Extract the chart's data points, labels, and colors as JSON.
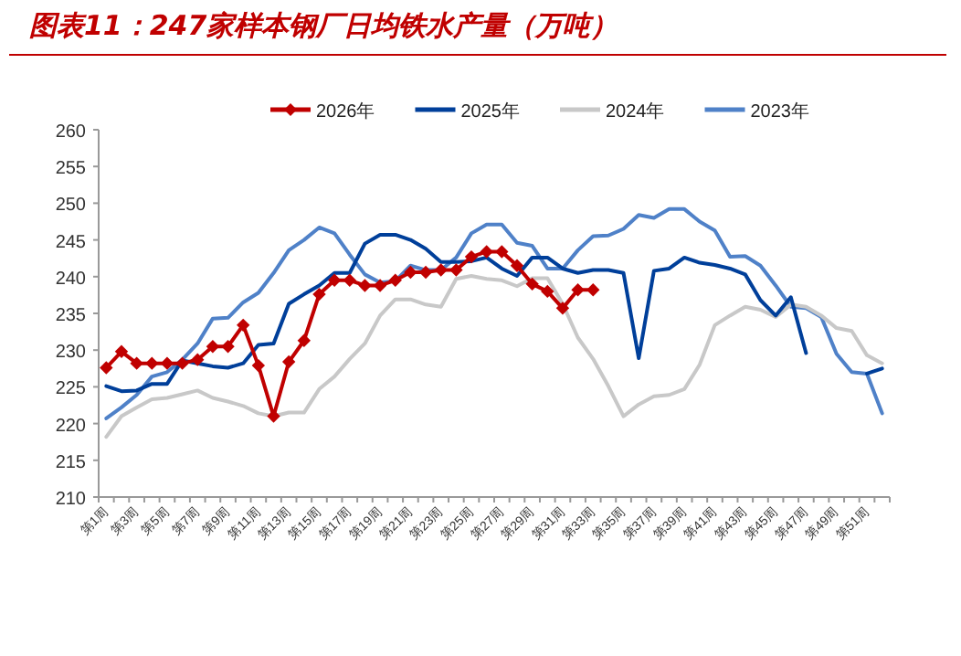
{
  "chart_data": {
    "type": "line",
    "title": "图表11：247家样本钢厂日均铁水产量（万吨）",
    "categories": [
      "第1周",
      null,
      "第3周",
      null,
      "第5周",
      null,
      "第7周",
      null,
      "第9周",
      null,
      "第11周",
      null,
      "第13周",
      null,
      "第15周",
      null,
      "第17周",
      null,
      "第19周",
      null,
      "第21周",
      null,
      "第23周",
      null,
      "第25周",
      null,
      "第27周",
      null,
      "第29周",
      null,
      "第31周",
      null,
      "第33周",
      null,
      "第35周",
      null,
      "第37周",
      null,
      "第39周",
      null,
      "第41周",
      null,
      "第43周",
      null,
      "第45周",
      null,
      "第47周",
      null,
      "第49周",
      null,
      "第51周",
      null
    ],
    "series": [
      {
        "name": "2026年",
        "color": "#c00000",
        "marker": "diamond",
        "values": [
          227.6,
          229.8,
          228.2,
          228.2,
          228.2,
          228.2,
          228.7,
          230.5,
          230.5,
          233.4,
          227.9,
          221.0,
          228.4,
          231.3,
          237.6,
          239.5,
          239.5,
          238.8,
          238.8,
          239.5,
          240.6,
          240.6,
          240.9,
          240.9,
          242.7,
          243.4,
          243.4,
          241.5,
          239.0,
          238.0,
          235.7,
          238.2,
          238.2,
          null,
          null,
          null,
          null,
          null,
          null,
          null,
          null,
          null,
          null,
          null,
          null,
          null,
          null,
          null,
          null,
          null,
          null,
          null
        ]
      },
      {
        "name": "2025年",
        "color": "#003f9a",
        "values": [
          225.1,
          224.4,
          224.5,
          225.4,
          225.4,
          228.6,
          228.2,
          227.8,
          227.6,
          228.2,
          230.7,
          230.9,
          236.3,
          237.6,
          238.8,
          240.5,
          240.5,
          244.5,
          245.7,
          245.7,
          245.0,
          243.8,
          242.0,
          242.0,
          242.1,
          242.6,
          241.1,
          240.1,
          242.6,
          242.6,
          241.1,
          240.5,
          240.9,
          240.9,
          240.5,
          228.9,
          240.8,
          241.1,
          242.6,
          241.9,
          241.6,
          241.1,
          240.3,
          236.8,
          234.7,
          237.2,
          229.6,
          null,
          null,
          null,
          226.8,
          227.5
        ]
      },
      {
        "name": "2024年",
        "color": "#c8c8c8",
        "values": [
          218.2,
          221.0,
          222.2,
          223.3,
          223.5,
          224.0,
          224.5,
          223.5,
          223.0,
          222.4,
          221.4,
          221.0,
          221.5,
          221.5,
          224.7,
          226.4,
          228.8,
          230.9,
          234.7,
          236.9,
          236.9,
          236.2,
          235.9,
          239.7,
          240.1,
          239.7,
          239.5,
          238.7,
          239.8,
          239.8,
          236.3,
          231.7,
          228.8,
          225.1,
          221.0,
          222.6,
          223.7,
          223.9,
          224.7,
          228.0,
          233.4,
          234.7,
          235.9,
          235.5,
          234.5,
          236.2,
          235.9,
          234.7,
          233.0,
          232.6,
          229.3,
          228.2
        ]
      },
      {
        "name": "2023年",
        "color": "#4f81c8",
        "values": [
          220.7,
          222.2,
          223.9,
          226.4,
          227.0,
          228.7,
          230.9,
          234.3,
          234.4,
          236.5,
          237.8,
          240.5,
          243.6,
          245.0,
          246.7,
          245.9,
          243.0,
          240.3,
          239.2,
          239.4,
          241.5,
          240.9,
          240.9,
          242.6,
          245.9,
          247.1,
          247.1,
          244.6,
          244.2,
          241.1,
          241.1,
          243.6,
          245.5,
          245.6,
          246.5,
          248.4,
          248.0,
          249.2,
          249.2,
          247.5,
          246.3,
          242.7,
          242.8,
          241.5,
          238.8,
          235.9,
          235.7,
          234.5,
          229.5,
          227.0,
          226.8,
          221.4
        ]
      }
    ],
    "ylim": [
      210,
      260
    ],
    "yticks": [
      210,
      215,
      220,
      225,
      230,
      235,
      240,
      245,
      250,
      255,
      260
    ],
    "grid": false,
    "legend": "top",
    "line_style": "solid"
  }
}
